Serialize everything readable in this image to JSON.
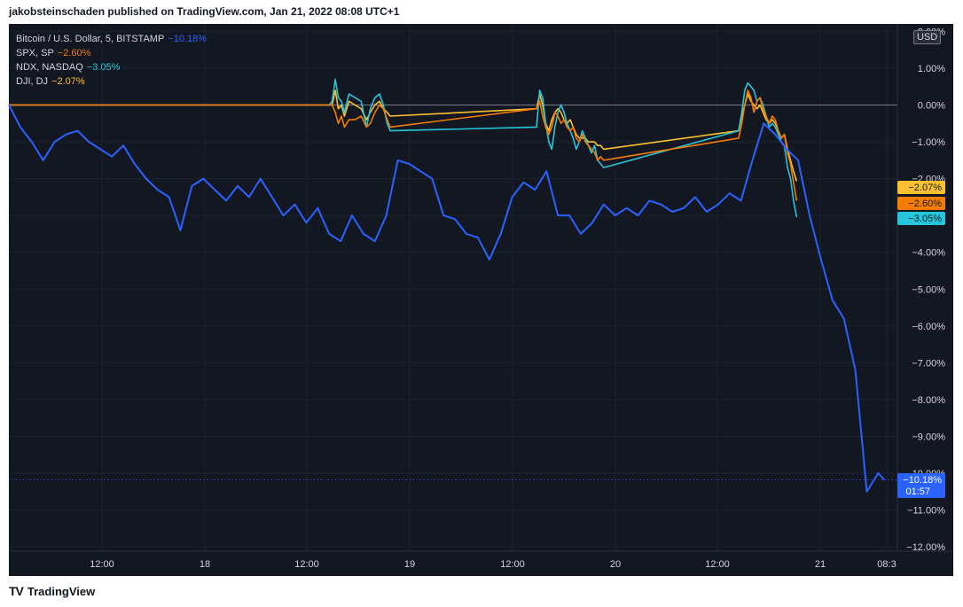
{
  "header": {
    "text": "jakobsteinschaden published on TradingView.com, Jan 21, 2022 08:08 UTC+1"
  },
  "footer": {
    "logo": "TV",
    "brand": "TradingView"
  },
  "currency_badge": "USD",
  "legend": [
    {
      "name": "Bitcoin / U.S. Dollar, 5, BITSTAMP",
      "change": "−10.18%",
      "color": "#2962ff"
    },
    {
      "name": "SPX, SP",
      "change": "−2.60%",
      "color": "#f57c00"
    },
    {
      "name": "NDX, NASDAQ",
      "change": "−3.05%",
      "color": "#26c6da"
    },
    {
      "name": "DJI, DJ",
      "change": "−2.07%",
      "color": "#fbc02d"
    }
  ],
  "colors": {
    "background": "#131722",
    "grid": "#1e222d",
    "axis_text": "#d1d4dc",
    "zero_line": "#787b86",
    "btc": "#2962ff",
    "spx": "#f57c00",
    "ndx": "#26c6da",
    "dji": "#fbc02d"
  },
  "chart_data": {
    "type": "line",
    "x_tick_labels": [
      "12:00",
      "18",
      "12:00",
      "19",
      "12:00",
      "20",
      "12:00",
      "21",
      "08:3"
    ],
    "y_tick_labels": [
      "2.00%",
      "1.00%",
      "0.00%",
      "−1.00%",
      "−2.00%",
      "−3.00%",
      "−4.00%",
      "−5.00%",
      "−6.00%",
      "−7.00%",
      "−8.00%",
      "−9.00%",
      "−10.00%",
      "−11.00%",
      "−12.00%"
    ],
    "ylim": [
      -12,
      2
    ],
    "y_unit": "%",
    "xlim_hours": [
      0,
      114.8
    ],
    "x_axis_note": "x values are hours after Jan 17, 07:00",
    "last_value_labels": [
      {
        "series": "DJI, DJ",
        "text": "−2.07%",
        "value": -2.07,
        "color": "#fbc02d"
      },
      {
        "series": "SPX, SP",
        "text": "−2.60%",
        "value": -2.6,
        "color": "#f57c00"
      },
      {
        "series": "NDX, NASDAQ",
        "text": "−3.05%",
        "value": -3.05,
        "color": "#26c6da"
      },
      {
        "series": "Bitcoin / U.S. Dollar, 5, BITSTAMP",
        "text": "−10.18%",
        "value": -10.18,
        "sub": "01:57",
        "color": "#2962ff"
      }
    ],
    "series": [
      {
        "name": "Bitcoin / U.S. Dollar, 5, BITSTAMP",
        "color": "#2962ff",
        "x": [
          0,
          1.5,
          3,
          4.5,
          6,
          7.5,
          9,
          10.5,
          12,
          13.5,
          15,
          16.5,
          18,
          19.5,
          21,
          22.5,
          24,
          25.5,
          27,
          28.5,
          30,
          31.5,
          33,
          34.5,
          36,
          37.5,
          39,
          40.5,
          42,
          43.5,
          45,
          46.5,
          48,
          49.5,
          51,
          52.5,
          54,
          55.5,
          57,
          58.5,
          60,
          61.5,
          63,
          64.5,
          66,
          67.5,
          69,
          70.5,
          72,
          73.5,
          75,
          76.5,
          78,
          79.5,
          81,
          82.5,
          84,
          85.5,
          87,
          88.5,
          90,
          91.5,
          93,
          94.5,
          96,
          97.5,
          99,
          100.5,
          102,
          103.5,
          105,
          106.5,
          108,
          109.5,
          111,
          112.5,
          114,
          114.8
        ],
        "y": [
          0.0,
          -0.6,
          -1.0,
          -1.5,
          -1.0,
          -0.8,
          -0.7,
          -1.0,
          -1.2,
          -1.4,
          -1.1,
          -1.6,
          -2.0,
          -2.3,
          -2.5,
          -3.4,
          -2.2,
          -2.0,
          -2.3,
          -2.6,
          -2.2,
          -2.5,
          -2.0,
          -2.5,
          -3.0,
          -2.7,
          -3.2,
          -2.8,
          -3.5,
          -3.7,
          -3.0,
          -3.5,
          -3.7,
          -3.0,
          -1.5,
          -1.6,
          -1.8,
          -2.0,
          -3.0,
          -3.1,
          -3.5,
          -3.6,
          -4.2,
          -3.5,
          -2.5,
          -2.1,
          -2.3,
          -1.8,
          -3.0,
          -3.0,
          -3.5,
          -3.2,
          -2.7,
          -3.0,
          -2.8,
          -3.0,
          -2.6,
          -2.7,
          -2.9,
          -2.8,
          -2.5,
          -2.9,
          -2.7,
          -2.4,
          -2.6,
          -1.5,
          -0.5,
          -0.8,
          -1.2,
          -1.5,
          -3.0,
          -4.2,
          -5.3,
          -5.8,
          -7.2,
          -10.5,
          -10.0,
          -10.18
        ]
      },
      {
        "name": "SPX, SP",
        "color": "#f57c00",
        "x": [
          0,
          42.0,
          42.4,
          42.8,
          43.2,
          43.6,
          44.0,
          44.6,
          45.4,
          46.2,
          46.9,
          47.4,
          48.0,
          48.6,
          49.1,
          49.6,
          50.0,
          69.2,
          69.6,
          70.0,
          70.4,
          70.8,
          71.2,
          71.6,
          72.0,
          72.4,
          72.8,
          73.2,
          73.6,
          74.0,
          74.4,
          74.8,
          75.2,
          75.6,
          76.0,
          76.4,
          76.8,
          77.2,
          77.6,
          78.0,
          95.7,
          96.1,
          96.5,
          96.9,
          97.3,
          97.7,
          98.1,
          98.5,
          98.9,
          99.3,
          99.7,
          100.1,
          100.5,
          100.9,
          101.3,
          101.7,
          102.1,
          102.5,
          102.9,
          103.3
        ],
        "y": [
          0.0,
          0.0,
          0.0,
          -0.2,
          -0.5,
          -0.3,
          -0.6,
          -0.4,
          -0.4,
          -0.3,
          -0.6,
          -0.5,
          -0.2,
          0.0,
          -0.1,
          -0.4,
          -0.6,
          -0.1,
          0.1,
          -0.3,
          -0.6,
          -0.8,
          -0.6,
          -0.2,
          -0.3,
          -0.5,
          -0.4,
          -0.6,
          -0.7,
          -0.6,
          -0.9,
          -1.0,
          -0.8,
          -1.0,
          -1.1,
          -1.2,
          -1.3,
          -1.5,
          -1.4,
          -1.5,
          -0.9,
          -0.5,
          0.0,
          0.4,
          0.2,
          -0.2,
          0.1,
          0.2,
          -0.1,
          -0.3,
          -0.5,
          -0.3,
          -0.4,
          -0.7,
          -0.9,
          -0.8,
          -1.3,
          -1.6,
          -2.1,
          -2.6
        ]
      },
      {
        "name": "NDX, NASDAQ",
        "color": "#26c6da",
        "x": [
          0,
          42.0,
          42.4,
          42.8,
          43.2,
          43.6,
          44.0,
          44.6,
          45.4,
          46.2,
          46.9,
          47.4,
          48.0,
          48.6,
          49.1,
          49.6,
          50.0,
          69.2,
          69.6,
          70.0,
          70.4,
          70.8,
          71.2,
          71.6,
          72.0,
          72.4,
          72.8,
          73.2,
          73.6,
          74.0,
          74.4,
          74.8,
          75.2,
          75.6,
          76.0,
          76.4,
          76.8,
          77.2,
          77.6,
          78.0,
          95.7,
          96.1,
          96.5,
          96.9,
          97.3,
          97.7,
          98.1,
          98.5,
          98.9,
          99.3,
          99.7,
          100.1,
          100.5,
          100.9,
          101.3,
          101.7,
          102.1,
          102.5,
          102.9,
          103.3
        ],
        "y": [
          0.0,
          0.0,
          0.1,
          0.7,
          0.2,
          0.1,
          -0.2,
          0.3,
          0.2,
          0.1,
          -0.6,
          -0.1,
          0.2,
          0.3,
          0.0,
          -0.5,
          -0.7,
          -0.6,
          0.4,
          0.2,
          -0.5,
          -1.0,
          -1.2,
          -0.6,
          -0.2,
          0.0,
          -0.2,
          -0.5,
          -0.7,
          -0.9,
          -1.2,
          -1.0,
          -0.7,
          -0.9,
          -1.1,
          -1.3,
          -1.1,
          -1.5,
          -1.6,
          -1.7,
          -0.7,
          -0.2,
          0.4,
          0.6,
          0.5,
          0.4,
          0.1,
          0.2,
          0.0,
          -0.3,
          -0.6,
          -0.5,
          -0.6,
          -0.8,
          -1.0,
          -1.1,
          -1.7,
          -2.0,
          -2.6,
          -3.05
        ]
      },
      {
        "name": "DJI, DJ",
        "color": "#fbc02d",
        "x": [
          0,
          42.0,
          42.4,
          42.8,
          43.2,
          43.6,
          44.0,
          44.6,
          45.4,
          46.2,
          46.9,
          47.4,
          48.0,
          48.6,
          49.1,
          49.6,
          50.0,
          69.2,
          69.6,
          70.0,
          70.4,
          70.8,
          71.2,
          71.6,
          72.0,
          72.4,
          72.8,
          73.2,
          73.6,
          74.0,
          74.4,
          74.8,
          75.2,
          75.6,
          76.0,
          76.4,
          76.8,
          77.2,
          77.6,
          78.0,
          95.7,
          96.1,
          96.5,
          96.9,
          97.3,
          97.7,
          98.1,
          98.5,
          98.9,
          99.3,
          99.7,
          100.1,
          100.5,
          100.9,
          101.3,
          101.7,
          102.1,
          102.5,
          102.9,
          103.3
        ],
        "y": [
          0.0,
          0.0,
          0.0,
          0.4,
          -0.1,
          0.0,
          -0.3,
          0.1,
          0.0,
          -0.1,
          -0.4,
          -0.2,
          0.0,
          0.1,
          -0.1,
          -0.2,
          -0.3,
          -0.1,
          0.3,
          0.0,
          -0.5,
          -0.7,
          -0.4,
          -0.2,
          -0.1,
          -0.2,
          -0.4,
          -0.5,
          -0.4,
          -0.6,
          -0.8,
          -0.9,
          -0.9,
          -0.9,
          -1.0,
          -1.0,
          -1.0,
          -1.1,
          -1.1,
          -1.2,
          -0.7,
          -0.3,
          0.0,
          0.3,
          0.1,
          0.0,
          -0.1,
          0.0,
          -0.2,
          -0.4,
          -0.5,
          -0.4,
          -0.5,
          -0.7,
          -0.9,
          -0.8,
          -1.2,
          -1.5,
          -1.8,
          -2.07
        ]
      }
    ]
  }
}
